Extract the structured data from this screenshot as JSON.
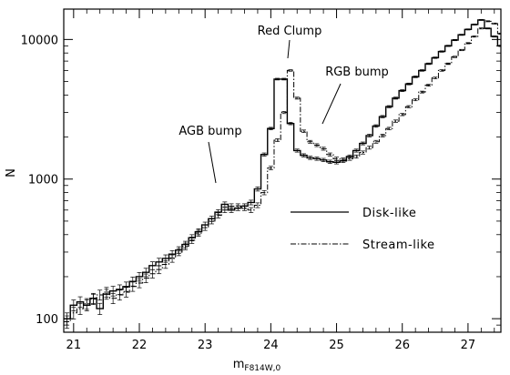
{
  "chart_data": {
    "type": "line",
    "title": "",
    "xlabel": "m",
    "xlabel_sub": "F814W,0",
    "ylabel": "N",
    "xlim": [
      20.85,
      27.5
    ],
    "ylim": [
      80,
      16500
    ],
    "yscale": "log",
    "grid": false,
    "x_ticks": [
      21,
      22,
      23,
      24,
      25,
      26,
      27
    ],
    "y_ticks": [
      100,
      1000,
      10000
    ],
    "legend_position": "center-right",
    "legend": [
      {
        "label": "Disk-like",
        "style": "solid"
      },
      {
        "label": "Stream-like",
        "style": "dash-dot"
      }
    ],
    "annotations": [
      {
        "text": "Red Clump",
        "x": 24.3,
        "y": 7000
      },
      {
        "text": "RGB bump",
        "x": 24.8,
        "y": 2500
      },
      {
        "text": "AGB bump",
        "x": 23.2,
        "y": 980
      }
    ],
    "series": [
      {
        "name": "Disk-like",
        "style": "solid",
        "x": [
          20.9,
          21.0,
          21.1,
          21.2,
          21.3,
          21.4,
          21.5,
          21.6,
          21.7,
          21.8,
          21.9,
          22.0,
          22.1,
          22.2,
          22.3,
          22.4,
          22.5,
          22.6,
          22.7,
          22.8,
          22.9,
          23.0,
          23.1,
          23.2,
          23.3,
          23.4,
          23.5,
          23.6,
          23.7,
          23.8,
          23.9,
          24.0,
          24.1,
          24.2,
          24.3,
          24.4,
          24.5,
          24.6,
          24.7,
          24.8,
          24.9,
          25.0,
          25.1,
          25.2,
          25.3,
          25.4,
          25.5,
          25.6,
          25.7,
          25.8,
          25.9,
          26.0,
          26.1,
          26.2,
          26.3,
          26.4,
          26.5,
          26.6,
          26.7,
          26.8,
          26.9,
          27.0,
          27.1,
          27.2,
          27.3,
          27.4,
          27.5
        ],
        "y": [
          100,
          125,
          132,
          125,
          140,
          118,
          150,
          158,
          162,
          170,
          185,
          200,
          215,
          240,
          255,
          270,
          290,
          310,
          340,
          380,
          420,
          470,
          520,
          580,
          660,
          600,
          620,
          640,
          680,
          850,
          1500,
          2300,
          5200,
          5200,
          2500,
          1600,
          1480,
          1420,
          1400,
          1370,
          1330,
          1320,
          1350,
          1450,
          1600,
          1800,
          2050,
          2400,
          2800,
          3300,
          3800,
          4300,
          4800,
          5400,
          6000,
          6700,
          7400,
          8200,
          9000,
          9900,
          10800,
          11800,
          12800,
          13800,
          12000,
          10500,
          9000
        ]
      },
      {
        "name": "Stream-like",
        "style": "dash-dot",
        "x": [
          20.9,
          21.0,
          21.1,
          21.2,
          21.3,
          21.4,
          21.5,
          21.6,
          21.7,
          21.8,
          21.9,
          22.0,
          22.1,
          22.2,
          22.3,
          22.4,
          22.5,
          22.6,
          22.7,
          22.8,
          22.9,
          23.0,
          23.1,
          23.2,
          23.3,
          23.4,
          23.5,
          23.6,
          23.7,
          23.8,
          23.9,
          24.0,
          24.1,
          24.2,
          24.3,
          24.4,
          24.5,
          24.6,
          24.7,
          24.8,
          24.9,
          25.0,
          25.1,
          25.2,
          25.3,
          25.4,
          25.5,
          25.6,
          25.7,
          25.8,
          25.9,
          26.0,
          26.1,
          26.2,
          26.3,
          26.4,
          26.5,
          26.6,
          26.7,
          26.8,
          26.9,
          27.0,
          27.1,
          27.2,
          27.3,
          27.4,
          27.5
        ],
        "y": [
          95,
          110,
          118,
          128,
          138,
          148,
          155,
          140,
          148,
          155,
          170,
          180,
          195,
          210,
          225,
          245,
          270,
          300,
          330,
          365,
          410,
          450,
          500,
          550,
          600,
          640,
          640,
          620,
          600,
          650,
          800,
          1200,
          1900,
          3000,
          6000,
          3800,
          2200,
          1850,
          1750,
          1650,
          1500,
          1400,
          1380,
          1400,
          1450,
          1550,
          1680,
          1850,
          2050,
          2300,
          2600,
          2900,
          3300,
          3700,
          4200,
          4700,
          5300,
          6000,
          6700,
          7500,
          8400,
          9400,
          10500,
          12000,
          13500,
          13000,
          11000
        ]
      }
    ]
  }
}
